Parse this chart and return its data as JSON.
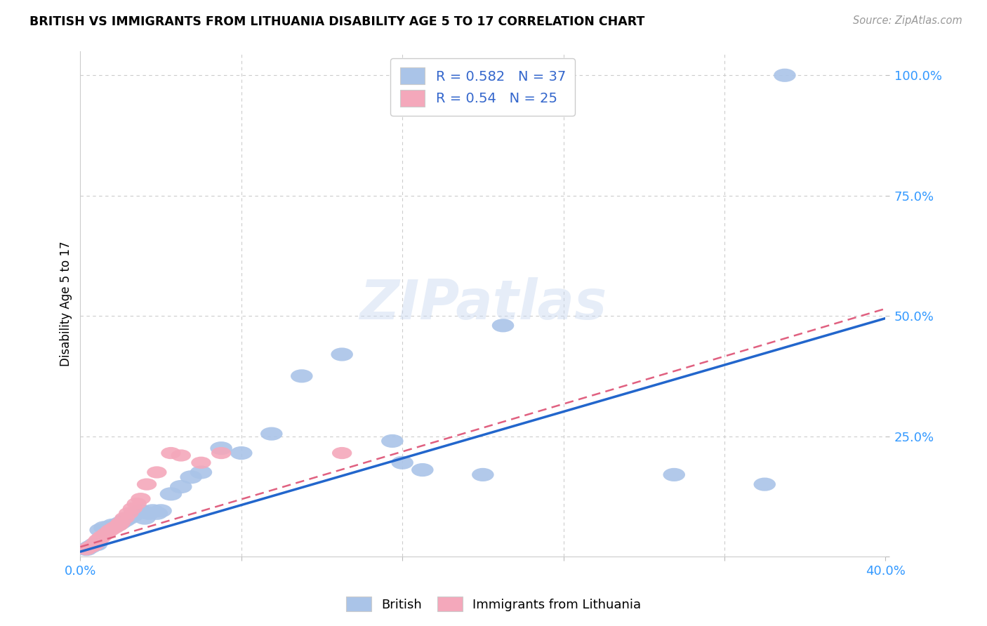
{
  "title": "BRITISH VS IMMIGRANTS FROM LITHUANIA DISABILITY AGE 5 TO 17 CORRELATION CHART",
  "source": "Source: ZipAtlas.com",
  "ylabel": "Disability Age 5 to 17",
  "xlim": [
    0.0,
    0.4
  ],
  "ylim": [
    0.0,
    1.05
  ],
  "xtick_positions": [
    0.0,
    0.08,
    0.16,
    0.24,
    0.32,
    0.4
  ],
  "xtick_labels": [
    "0.0%",
    "",
    "",
    "",
    "",
    "40.0%"
  ],
  "ytick_positions": [
    0.0,
    0.25,
    0.5,
    0.75,
    1.0
  ],
  "ytick_labels": [
    "",
    "25.0%",
    "50.0%",
    "75.0%",
    "100.0%"
  ],
  "british_R": 0.582,
  "british_N": 37,
  "lithuania_R": 0.54,
  "lithuania_N": 25,
  "british_color": "#aac4e8",
  "lithuania_color": "#f4a8bb",
  "british_line_color": "#2266cc",
  "lithuania_line_color": "#e06080",
  "watermark": "ZIPatlas",
  "british_x": [
    0.003,
    0.005,
    0.007,
    0.008,
    0.01,
    0.012,
    0.014,
    0.016,
    0.018,
    0.02,
    0.022,
    0.024,
    0.026,
    0.028,
    0.03,
    0.032,
    0.034,
    0.036,
    0.038,
    0.04,
    0.045,
    0.05,
    0.055,
    0.06,
    0.07,
    0.08,
    0.095,
    0.11,
    0.13,
    0.155,
    0.16,
    0.17,
    0.2,
    0.21,
    0.295,
    0.34,
    0.35
  ],
  "british_y": [
    0.015,
    0.02,
    0.025,
    0.025,
    0.055,
    0.06,
    0.06,
    0.065,
    0.065,
    0.07,
    0.075,
    0.08,
    0.085,
    0.09,
    0.095,
    0.08,
    0.09,
    0.095,
    0.09,
    0.095,
    0.13,
    0.145,
    0.165,
    0.175,
    0.225,
    0.215,
    0.255,
    0.375,
    0.42,
    0.24,
    0.195,
    0.18,
    0.17,
    0.48,
    0.17,
    0.15,
    1.0
  ],
  "lithuania_x": [
    0.003,
    0.005,
    0.006,
    0.007,
    0.008,
    0.009,
    0.01,
    0.011,
    0.013,
    0.015,
    0.017,
    0.019,
    0.02,
    0.022,
    0.024,
    0.026,
    0.028,
    0.03,
    0.033,
    0.038,
    0.045,
    0.05,
    0.06,
    0.07,
    0.13
  ],
  "lithuania_y": [
    0.015,
    0.02,
    0.022,
    0.025,
    0.03,
    0.035,
    0.038,
    0.042,
    0.048,
    0.055,
    0.06,
    0.065,
    0.07,
    0.08,
    0.09,
    0.1,
    0.11,
    0.12,
    0.15,
    0.175,
    0.215,
    0.21,
    0.195,
    0.215,
    0.215
  ],
  "british_line_x0": 0.0,
  "british_line_y0": 0.01,
  "british_line_x1": 0.4,
  "british_line_y1": 0.495,
  "lithuania_line_x0": 0.0,
  "lithuania_line_y0": 0.02,
  "lithuania_line_x1": 0.4,
  "lithuania_line_y1": 0.515
}
